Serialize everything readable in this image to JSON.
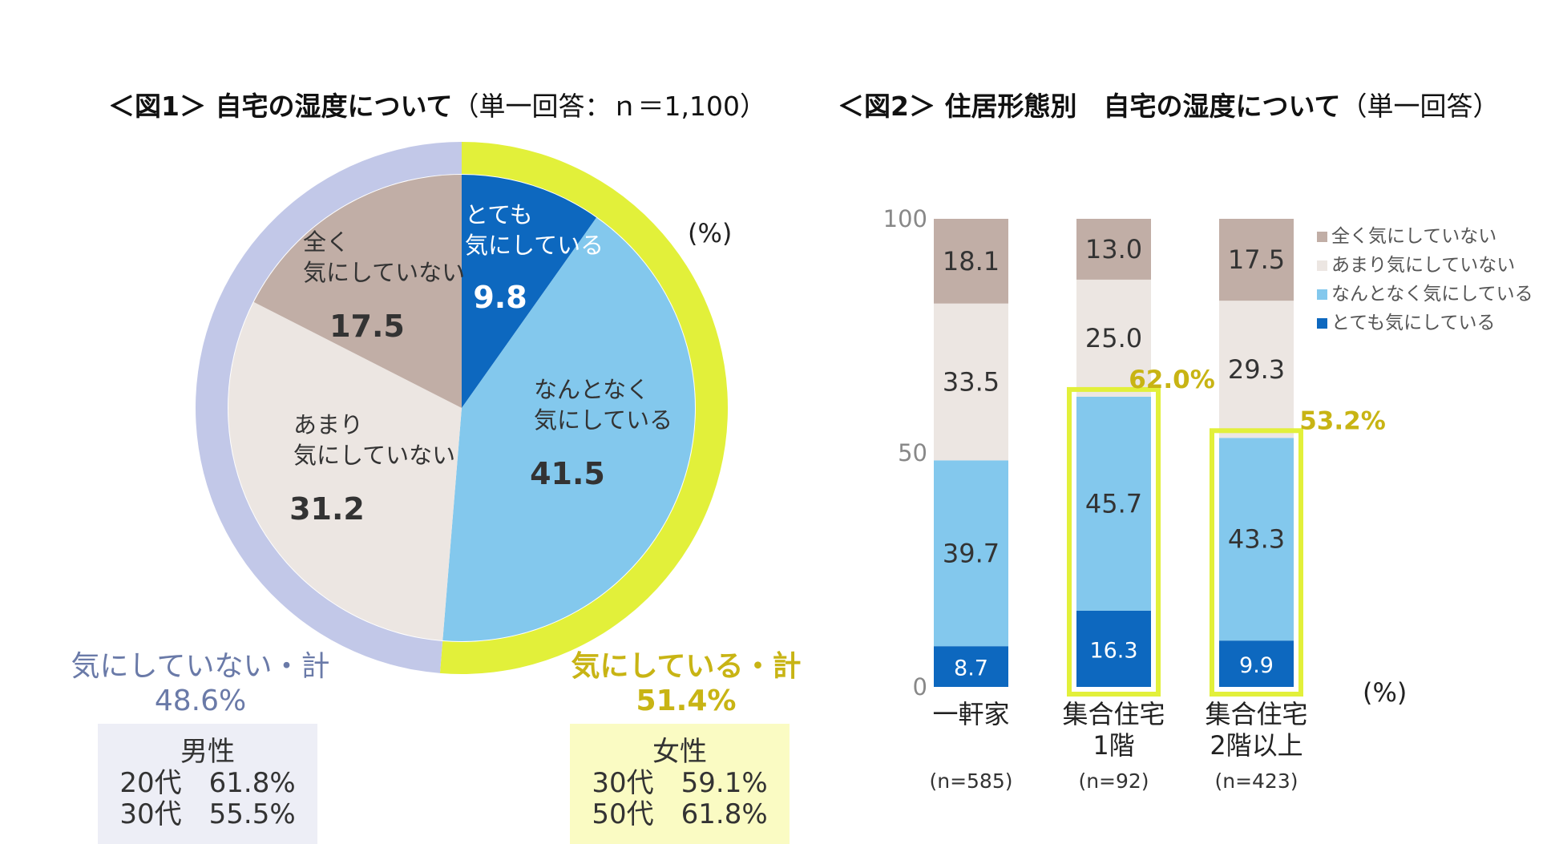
{
  "fig1": {
    "title_main": "＜図1＞ 自宅の湿度について",
    "title_sub": "（単一回答：ｎ＝1,100）",
    "unit": "(%)"
  },
  "fig2": {
    "title_main": "＜図2＞ 住居形態別　自宅の湿度について",
    "title_sub": "（単一回答）",
    "unit": "(%)"
  },
  "colors": {
    "zenku": "#c1aea6",
    "amari": "#ece6e2",
    "nantonaku": "#83c8ed",
    "totemo": "#0d68bf",
    "not_care_ring": "#c2c8e8",
    "care_ring": "#e2f03a",
    "care_text": "#c8b414",
    "not_care_text": "#6a7aa8"
  },
  "summary": {
    "not_care_label": "気にしていない・計",
    "not_care_value": "48.6%",
    "care_label": "気にしている・計",
    "care_value": "51.4%"
  },
  "male_box": {
    "title": "男性",
    "row1": "20代　61.8%",
    "row2": "30代　55.5%"
  },
  "female_box": {
    "title": "女性",
    "row1": "30代　59.1%",
    "row2": "50代　61.8%"
  },
  "chart_data": [
    {
      "type": "pie",
      "slices": [
        {
          "label_lines": [
            "とても",
            "気にしている"
          ],
          "value": 9.8,
          "color": "#0d68bf",
          "label_color": "#ffffff"
        },
        {
          "label_lines": [
            "なんとなく",
            "気にしている"
          ],
          "value": 41.5,
          "color": "#83c8ed",
          "label_color": "#333333"
        },
        {
          "label_lines": [
            "あまり",
            "気にしていない"
          ],
          "value": 31.2,
          "color": "#ece6e2",
          "label_color": "#333333"
        },
        {
          "label_lines": [
            "全く",
            "気にしていない"
          ],
          "value": 17.5,
          "color": "#c1aea6",
          "label_color": "#333333"
        }
      ]
    },
    {
      "type": "bar",
      "stacked": true,
      "ylim": [
        0,
        100
      ],
      "yticks": [
        0,
        50,
        100
      ],
      "categories": [
        {
          "label_lines": [
            "一軒家"
          ],
          "n": "(n=585)"
        },
        {
          "label_lines": [
            "集合住宅",
            "1階"
          ],
          "n": "(n=92)"
        },
        {
          "label_lines": [
            "集合住宅",
            "2階以上"
          ],
          "n": "(n=423)"
        }
      ],
      "series": [
        {
          "name": "とても気にしている",
          "color": "#0d68bf",
          "values": [
            8.7,
            16.3,
            9.9
          ]
        },
        {
          "name": "なんとなく気にしている",
          "color": "#83c8ed",
          "values": [
            39.7,
            45.7,
            43.3
          ]
        },
        {
          "name": "あまり気にしていない",
          "color": "#ece6e2",
          "values": [
            33.5,
            25.0,
            29.3
          ]
        },
        {
          "name": "全く気にしていない",
          "color": "#c1aea6",
          "values": [
            18.1,
            13.0,
            17.5
          ]
        }
      ],
      "value_labels": [
        [
          "8.7",
          "39.7",
          "33.5",
          "18.1"
        ],
        [
          "16.3",
          "45.7",
          "25.0",
          "13.0"
        ],
        [
          "9.9",
          "43.3",
          "29.3",
          "17.5"
        ]
      ],
      "highlights": [
        {
          "category_index": 1,
          "label": "62.0%"
        },
        {
          "category_index": 2,
          "label": "53.2%"
        }
      ],
      "legend": {
        "placement": "top-right",
        "order": [
          "全く気にしていない",
          "あまり気にしていない",
          "なんとなく気にしている",
          "とても気にしている"
        ]
      }
    }
  ]
}
